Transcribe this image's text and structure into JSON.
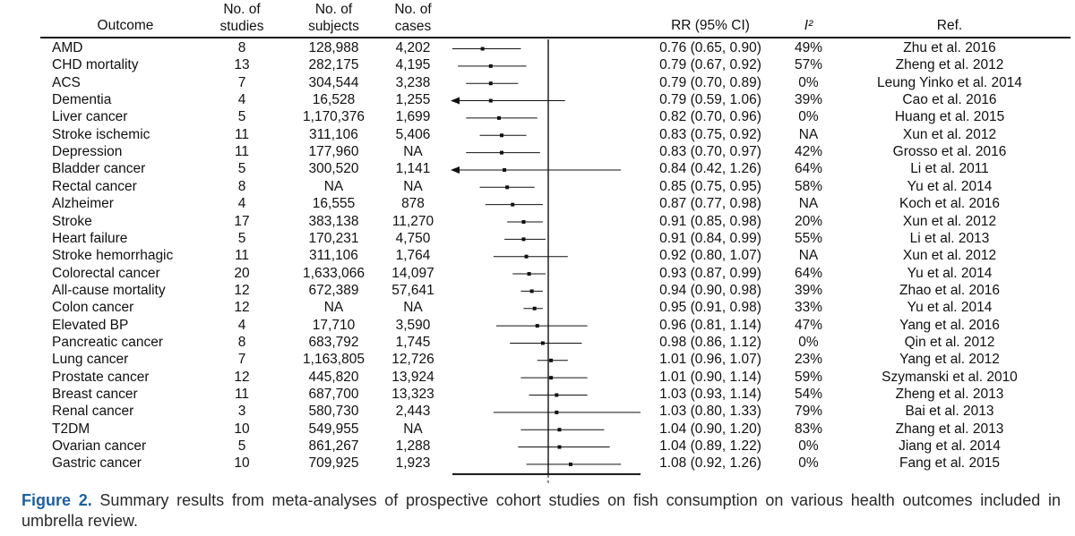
{
  "headers": {
    "outcome": "Outcome",
    "n_studies": "No. of\nstudies",
    "n_subjects": "No. of\nsubjects",
    "n_cases": "No. of\ncases",
    "rr": "RR (95% CI)",
    "i2": "I²",
    "ref": "Ref."
  },
  "caption": {
    "label": "Figure 2.",
    "text": "Summary results from meta-analyses of prospective cohort studies on fish consumption on various health outcomes included in umbrella review."
  },
  "chart_data": {
    "type": "forest",
    "null_line": 1,
    "xlabel": "",
    "tick_labels": [
      "1"
    ],
    "rows": [
      {
        "outcome": "AMD",
        "studies": "8",
        "subjects": "128,988",
        "cases": "4,202",
        "rr": 0.76,
        "lo": 0.65,
        "hi": 0.9,
        "rr_text": "0.76 (0.65, 0.90)",
        "i2": "49%",
        "ref": "Zhu et al. 2016"
      },
      {
        "outcome": "CHD mortality",
        "studies": "13",
        "subjects": "282,175",
        "cases": "4,195",
        "rr": 0.79,
        "lo": 0.67,
        "hi": 0.92,
        "rr_text": "0.79 (0.67, 0.92)",
        "i2": "57%",
        "ref": "Zheng et al. 2012"
      },
      {
        "outcome": "ACS",
        "studies": "7",
        "subjects": "304,544",
        "cases": "3,238",
        "rr": 0.79,
        "lo": 0.7,
        "hi": 0.89,
        "rr_text": "0.79 (0.70, 0.89)",
        "i2": "0%",
        "ref": "Leung Yinko et al. 2014"
      },
      {
        "outcome": "Dementia",
        "studies": "4",
        "subjects": "16,528",
        "cases": "1,255",
        "rr": 0.79,
        "lo": 0.59,
        "hi": 1.06,
        "rr_text": "0.79 (0.59, 1.06)",
        "i2": "39%",
        "ref": "Cao et al. 2016"
      },
      {
        "outcome": "Liver cancer",
        "studies": "5",
        "subjects": "1,170,376",
        "cases": "1,699",
        "rr": 0.82,
        "lo": 0.7,
        "hi": 0.96,
        "rr_text": "0.82 (0.70, 0.96)",
        "i2": "0%",
        "ref": "Huang et al. 2015"
      },
      {
        "outcome": "Stroke ischemic",
        "studies": "11",
        "subjects": "311,106",
        "cases": "5,406",
        "rr": 0.83,
        "lo": 0.75,
        "hi": 0.92,
        "rr_text": "0.83 (0.75, 0.92)",
        "i2": "NA",
        "ref": "Xun et al. 2012"
      },
      {
        "outcome": "Depression",
        "studies": "11",
        "subjects": "177,960",
        "cases": "NA",
        "rr": 0.83,
        "lo": 0.7,
        "hi": 0.97,
        "rr_text": "0.83 (0.70, 0.97)",
        "i2": "42%",
        "ref": "Grosso et al. 2016"
      },
      {
        "outcome": "Bladder cancer",
        "studies": "5",
        "subjects": "300,520",
        "cases": "1,141",
        "rr": 0.84,
        "lo": 0.42,
        "hi": 1.26,
        "rr_text": "0.84 (0.42, 1.26)",
        "i2": "64%",
        "ref": "Li et al. 2011"
      },
      {
        "outcome": "Rectal cancer",
        "studies": "8",
        "subjects": "NA",
        "cases": "NA",
        "rr": 0.85,
        "lo": 0.75,
        "hi": 0.95,
        "rr_text": "0.85 (0.75, 0.95)",
        "i2": "58%",
        "ref": "Yu et al. 2014"
      },
      {
        "outcome": "Alzheimer",
        "studies": "4",
        "subjects": "16,555",
        "cases": "878",
        "rr": 0.87,
        "lo": 0.77,
        "hi": 0.98,
        "rr_text": "0.87 (0.77, 0.98)",
        "i2": "NA",
        "ref": "Koch et al. 2016"
      },
      {
        "outcome": "Stroke",
        "studies": "17",
        "subjects": "383,138",
        "cases": "11,270",
        "rr": 0.91,
        "lo": 0.85,
        "hi": 0.98,
        "rr_text": "0.91 (0.85, 0.98)",
        "i2": "20%",
        "ref": "Xun et al. 2012"
      },
      {
        "outcome": "Heart failure",
        "studies": "5",
        "subjects": "170,231",
        "cases": "4,750",
        "rr": 0.91,
        "lo": 0.84,
        "hi": 0.99,
        "rr_text": "0.91 (0.84, 0.99)",
        "i2": "55%",
        "ref": "Li et al. 2013"
      },
      {
        "outcome": "Stroke hemorrhagic",
        "studies": "11",
        "subjects": "311,106",
        "cases": "1,764",
        "rr": 0.92,
        "lo": 0.8,
        "hi": 1.07,
        "rr_text": "0.92 (0.80, 1.07)",
        "i2": "NA",
        "ref": "Xun et al. 2012"
      },
      {
        "outcome": "Colorectal cancer",
        "studies": "20",
        "subjects": "1,633,066",
        "cases": "14,097",
        "rr": 0.93,
        "lo": 0.87,
        "hi": 0.99,
        "rr_text": "0.93 (0.87, 0.99)",
        "i2": "64%",
        "ref": "Yu et al. 2014"
      },
      {
        "outcome": "All-cause mortality",
        "studies": "12",
        "subjects": "672,389",
        "cases": "57,641",
        "rr": 0.94,
        "lo": 0.9,
        "hi": 0.98,
        "rr_text": "0.94 (0.90, 0.98)",
        "i2": "39%",
        "ref": "Zhao et al. 2016"
      },
      {
        "outcome": "Colon cancer",
        "studies": "12",
        "subjects": "NA",
        "cases": "NA",
        "rr": 0.95,
        "lo": 0.91,
        "hi": 0.98,
        "rr_text": "0.95 (0.91, 0.98)",
        "i2": "33%",
        "ref": "Yu et al. 2014"
      },
      {
        "outcome": "Elevated BP",
        "studies": "4",
        "subjects": "17,710",
        "cases": "3,590",
        "rr": 0.96,
        "lo": 0.81,
        "hi": 1.14,
        "rr_text": "0.96 (0.81, 1.14)",
        "i2": "47%",
        "ref": "Yang et al. 2016"
      },
      {
        "outcome": "Pancreatic cancer",
        "studies": "8",
        "subjects": "683,792",
        "cases": "1,745",
        "rr": 0.98,
        "lo": 0.86,
        "hi": 1.12,
        "rr_text": "0.98 (0.86, 1.12)",
        "i2": "0%",
        "ref": "Qin et al. 2012"
      },
      {
        "outcome": "Lung cancer",
        "studies": "7",
        "subjects": "1,163,805",
        "cases": "12,726",
        "rr": 1.01,
        "lo": 0.96,
        "hi": 1.07,
        "rr_text": "1.01 (0.96, 1.07)",
        "i2": "23%",
        "ref": "Yang et al. 2012"
      },
      {
        "outcome": "Prostate cancer",
        "studies": "12",
        "subjects": "445,820",
        "cases": "13,924",
        "rr": 1.01,
        "lo": 0.9,
        "hi": 1.14,
        "rr_text": "1.01 (0.90, 1.14)",
        "i2": "59%",
        "ref": "Szymanski et al. 2010"
      },
      {
        "outcome": "Breast cancer",
        "studies": "11",
        "subjects": "687,700",
        "cases": "13,323",
        "rr": 1.03,
        "lo": 0.93,
        "hi": 1.14,
        "rr_text": "1.03 (0.93, 1.14)",
        "i2": "54%",
        "ref": "Zheng et al. 2013"
      },
      {
        "outcome": "Renal cancer",
        "studies": "3",
        "subjects": "580,730",
        "cases": "2,443",
        "rr": 1.03,
        "lo": 0.8,
        "hi": 1.33,
        "rr_text": "1.03 (0.80, 1.33)",
        "i2": "79%",
        "ref": "Bai et al. 2013"
      },
      {
        "outcome": "T2DM",
        "studies": "10",
        "subjects": "549,955",
        "cases": "NA",
        "rr": 1.04,
        "lo": 0.9,
        "hi": 1.2,
        "rr_text": "1.04 (0.90, 1.20)",
        "i2": "83%",
        "ref": "Zhang et al. 2013"
      },
      {
        "outcome": "Ovarian cancer",
        "studies": "5",
        "subjects": "861,267",
        "cases": "1,288",
        "rr": 1.04,
        "lo": 0.89,
        "hi": 1.22,
        "rr_text": "1.04 (0.89, 1.22)",
        "i2": "0%",
        "ref": "Jiang et al. 2014"
      },
      {
        "outcome": "Gastric cancer",
        "studies": "10",
        "subjects": "709,925",
        "cases": "1,923",
        "rr": 1.08,
        "lo": 0.92,
        "hi": 1.26,
        "rr_text": "1.08 (0.92, 1.26)",
        "i2": "0%",
        "ref": "Fang et al. 2015"
      }
    ]
  }
}
